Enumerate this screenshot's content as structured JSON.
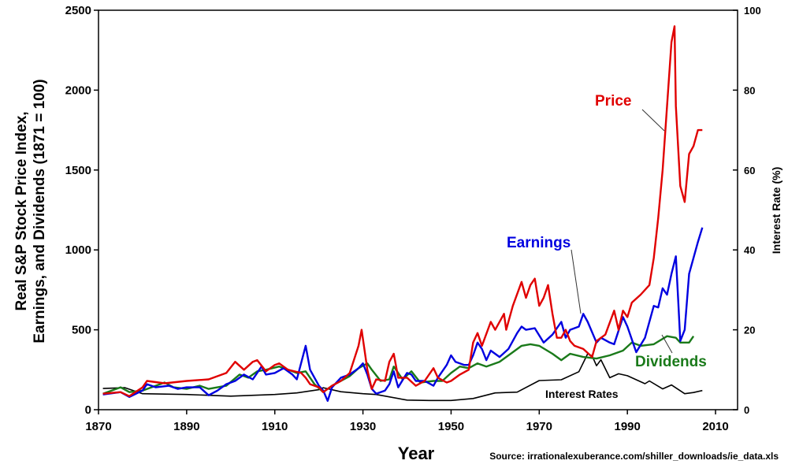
{
  "chart_data": {
    "type": "line",
    "xlabel": "Year",
    "ylabel_lines": [
      "Real S&P Stock Price Index,",
      "Earnings, and Dividends (1871 = 100)"
    ],
    "y2label": "Interest Rate (%)",
    "source": "Source: irrationalexuberance.com/shiller_downloads/ie_data.xls",
    "xlim": [
      1870,
      2015
    ],
    "ylim": [
      0,
      2500
    ],
    "y2lim": [
      0,
      100
    ],
    "xticks": [
      "1870",
      "1890",
      "1910",
      "1930",
      "1950",
      "1970",
      "1990",
      "2010"
    ],
    "yticks": [
      "0",
      "500",
      "1000",
      "1500",
      "2000",
      "2500"
    ],
    "y2ticks": [
      "0",
      "20",
      "40",
      "60",
      "80",
      "100"
    ],
    "grid": false,
    "series": [
      {
        "name": "Price",
        "color": "#e00000",
        "axis": "left",
        "x": [
          1871,
          1875,
          1877,
          1880,
          1881,
          1885,
          1890,
          1895,
          1899,
          1901,
          1903,
          1905,
          1906,
          1908,
          1910,
          1911,
          1913,
          1916,
          1917,
          1918,
          1920,
          1921,
          1923,
          1925,
          1927,
          1929,
          1929.7,
          1931,
          1932,
          1933,
          1935,
          1936,
          1937,
          1938,
          1940,
          1942,
          1944,
          1946,
          1947,
          1949,
          1950,
          1952,
          1954,
          1955,
          1956,
          1957,
          1959,
          1960,
          1962,
          1962.5,
          1964,
          1966,
          1967,
          1968,
          1969,
          1970,
          1971,
          1972,
          1973,
          1974,
          1975,
          1976,
          1977,
          1978,
          1980,
          1982,
          1983,
          1985,
          1987,
          1988,
          1989,
          1990,
          1991,
          1993,
          1995,
          1996,
          1997,
          1998,
          1999,
          2000,
          2000.7,
          2001,
          2002,
          2003,
          2004,
          2005,
          2006,
          2007
        ],
        "y": [
          100,
          110,
          85,
          140,
          180,
          165,
          180,
          190,
          230,
          300,
          250,
          300,
          310,
          240,
          280,
          290,
          250,
          230,
          200,
          160,
          140,
          110,
          150,
          180,
          230,
          400,
          500,
          250,
          130,
          190,
          180,
          300,
          350,
          200,
          200,
          150,
          180,
          260,
          200,
          170,
          180,
          220,
          250,
          420,
          480,
          400,
          550,
          500,
          600,
          500,
          650,
          800,
          700,
          780,
          820,
          650,
          700,
          780,
          600,
          450,
          450,
          500,
          430,
          400,
          380,
          330,
          430,
          470,
          620,
          500,
          620,
          580,
          670,
          720,
          780,
          950,
          1200,
          1500,
          1900,
          2300,
          2400,
          1900,
          1400,
          1300,
          1600,
          1650,
          1750,
          1750
        ]
      },
      {
        "name": "Earnings",
        "color": "#0000e0",
        "axis": "left",
        "x": [
          1871,
          1875,
          1877,
          1880,
          1881,
          1883,
          1886,
          1888,
          1890,
          1893,
          1895,
          1897,
          1899,
          1901,
          1903,
          1905,
          1907,
          1908,
          1910,
          1912,
          1914,
          1915,
          1917,
          1918,
          1920,
          1921,
          1922,
          1923,
          1925,
          1927,
          1929,
          1930,
          1931,
          1932,
          1933,
          1935,
          1936,
          1937,
          1938,
          1940,
          1941,
          1942,
          1944,
          1946,
          1947,
          1949,
          1950,
          1951,
          1953,
          1954,
          1955,
          1956,
          1957,
          1958,
          1959,
          1961,
          1963,
          1965,
          1966,
          1967,
          1969,
          1971,
          1973,
          1975,
          1976,
          1977,
          1979,
          1980,
          1981,
          1983,
          1984,
          1986,
          1987,
          1989,
          1990,
          1992,
          1994,
          1996,
          1997,
          1998,
          1999,
          2000,
          2001,
          2001.5,
          2002,
          2003,
          2004,
          2005,
          2006,
          2007
        ],
        "y": [
          95,
          110,
          80,
          120,
          160,
          140,
          150,
          130,
          140,
          140,
          90,
          120,
          160,
          180,
          220,
          190,
          270,
          220,
          230,
          260,
          220,
          190,
          400,
          250,
          150,
          120,
          55,
          140,
          200,
          220,
          260,
          290,
          220,
          130,
          100,
          120,
          160,
          240,
          140,
          230,
          220,
          180,
          180,
          150,
          200,
          280,
          340,
          300,
          280,
          280,
          340,
          420,
          380,
          310,
          370,
          330,
          380,
          480,
          520,
          500,
          510,
          420,
          470,
          550,
          450,
          500,
          520,
          600,
          550,
          420,
          450,
          420,
          410,
          580,
          520,
          360,
          450,
          650,
          640,
          760,
          720,
          850,
          960,
          700,
          430,
          500,
          850,
          950,
          1050,
          1140
        ]
      },
      {
        "name": "Dividends",
        "color": "#1a7a1a",
        "axis": "left",
        "x": [
          1871,
          1875,
          1877,
          1880,
          1883,
          1885,
          1887,
          1890,
          1893,
          1895,
          1897,
          1899,
          1902,
          1904,
          1906,
          1908,
          1911,
          1913,
          1915,
          1917,
          1919,
          1921,
          1923,
          1925,
          1927,
          1929,
          1931,
          1932,
          1934,
          1936,
          1937,
          1939,
          1941,
          1943,
          1946,
          1948,
          1950,
          1952,
          1954,
          1956,
          1958,
          1961,
          1964,
          1966,
          1968,
          1970,
          1973,
          1975,
          1977,
          1980,
          1983,
          1986,
          1989,
          1991,
          1993,
          1996,
          1999,
          2001,
          2002,
          2004,
          2005
        ],
        "y": [
          100,
          140,
          110,
          120,
          150,
          170,
          140,
          130,
          150,
          130,
          140,
          150,
          220,
          200,
          240,
          250,
          270,
          250,
          230,
          240,
          160,
          110,
          150,
          180,
          210,
          260,
          290,
          250,
          180,
          190,
          270,
          190,
          240,
          170,
          180,
          180,
          230,
          270,
          260,
          290,
          270,
          300,
          360,
          400,
          410,
          400,
          350,
          310,
          350,
          330,
          320,
          340,
          370,
          420,
          400,
          410,
          460,
          450,
          420,
          420,
          460
        ]
      },
      {
        "name": "Interest Rates",
        "color": "#000000",
        "axis": "right",
        "x": [
          1871,
          1876,
          1880,
          1890,
          1900,
          1910,
          1915,
          1920,
          1921,
          1925,
          1930,
          1933,
          1940,
          1945,
          1950,
          1955,
          1960,
          1965,
          1970,
          1975,
          1979,
          1981,
          1982,
          1983,
          1984,
          1986,
          1988,
          1990,
          1994,
          1995,
          1998,
          2000,
          2003,
          2005,
          2007
        ],
        "y": [
          5.3,
          5.5,
          4.0,
          3.8,
          3.4,
          3.8,
          4.2,
          5.0,
          5.5,
          4.5,
          4.0,
          3.8,
          2.4,
          2.3,
          2.3,
          2.8,
          4.2,
          4.4,
          7.3,
          7.5,
          9.5,
          14.0,
          13.5,
          11.0,
          12.5,
          8.0,
          9.0,
          8.5,
          6.5,
          7.2,
          5.2,
          6.2,
          4.0,
          4.3,
          4.8
        ]
      }
    ],
    "annotations": [
      "Price",
      "Earnings",
      "Dividends",
      "Interest Rates"
    ]
  }
}
